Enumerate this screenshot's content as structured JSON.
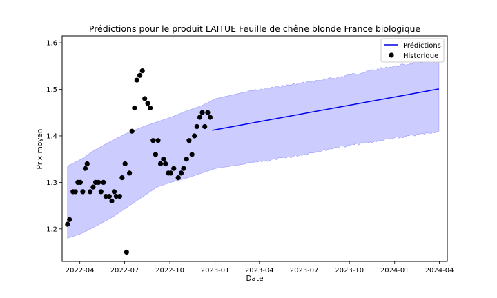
{
  "chart_data": {
    "type": "line",
    "title": "Prédictions pour le produit LAITUE Feuille de chêne blonde France biologique",
    "xlabel": "Date",
    "ylabel": "Prix moyen",
    "xlim": [
      "2022-02-24",
      "2024-04-17"
    ],
    "ylim": [
      1.13,
      1.615
    ],
    "x_ticks": [
      "2022-04",
      "2022-07",
      "2022-10",
      "2023-01",
      "2023-04",
      "2023-07",
      "2023-10",
      "2024-01",
      "2024-04"
    ],
    "y_ticks": [
      1.2,
      1.3,
      1.4,
      1.5,
      1.6
    ],
    "grid": false,
    "legend": {
      "position": "top-right",
      "entries": [
        "Prédictions",
        "Historique"
      ]
    },
    "colors": {
      "prediction_line": "#0000ee",
      "interval_fill": "#ccccff",
      "interval_edge": "#9999ff",
      "history_points": "#000000"
    },
    "series": [
      {
        "name": "Historique",
        "kind": "scatter",
        "points": [
          [
            "2022-03-07",
            1.21
          ],
          [
            "2022-03-11",
            1.22
          ],
          [
            "2022-03-18",
            1.28
          ],
          [
            "2022-03-23",
            1.28
          ],
          [
            "2022-03-28",
            1.3
          ],
          [
            "2022-04-02",
            1.3
          ],
          [
            "2022-04-07",
            1.28
          ],
          [
            "2022-04-12",
            1.33
          ],
          [
            "2022-04-16",
            1.34
          ],
          [
            "2022-04-22",
            1.28
          ],
          [
            "2022-04-28",
            1.29
          ],
          [
            "2022-05-03",
            1.3
          ],
          [
            "2022-05-09",
            1.3
          ],
          [
            "2022-05-14",
            1.28
          ],
          [
            "2022-05-19",
            1.3
          ],
          [
            "2022-05-24",
            1.27
          ],
          [
            "2022-05-31",
            1.27
          ],
          [
            "2022-06-05",
            1.26
          ],
          [
            "2022-06-10",
            1.28
          ],
          [
            "2022-06-14",
            1.27
          ],
          [
            "2022-06-21",
            1.27
          ],
          [
            "2022-06-26",
            1.31
          ],
          [
            "2022-07-02",
            1.34
          ],
          [
            "2022-07-05",
            1.15
          ],
          [
            "2022-07-11",
            1.32
          ],
          [
            "2022-07-16",
            1.41
          ],
          [
            "2022-07-21",
            1.46
          ],
          [
            "2022-07-26",
            1.52
          ],
          [
            "2022-08-01",
            1.53
          ],
          [
            "2022-08-06",
            1.54
          ],
          [
            "2022-08-11",
            1.48
          ],
          [
            "2022-08-17",
            1.47
          ],
          [
            "2022-08-22",
            1.46
          ],
          [
            "2022-08-28",
            1.39
          ],
          [
            "2022-09-02",
            1.36
          ],
          [
            "2022-09-07",
            1.39
          ],
          [
            "2022-09-12",
            1.34
          ],
          [
            "2022-09-18",
            1.35
          ],
          [
            "2022-09-22",
            1.34
          ],
          [
            "2022-09-28",
            1.32
          ],
          [
            "2022-10-03",
            1.32
          ],
          [
            "2022-10-09",
            1.33
          ],
          [
            "2022-10-18",
            1.31
          ],
          [
            "2022-10-24",
            1.32
          ],
          [
            "2022-10-29",
            1.33
          ],
          [
            "2022-11-04",
            1.35
          ],
          [
            "2022-11-09",
            1.39
          ],
          [
            "2022-11-15",
            1.36
          ],
          [
            "2022-11-20",
            1.4
          ],
          [
            "2022-11-25",
            1.42
          ],
          [
            "2022-12-01",
            1.44
          ],
          [
            "2022-12-06",
            1.45
          ],
          [
            "2022-12-11",
            1.42
          ],
          [
            "2022-12-17",
            1.45
          ],
          [
            "2022-12-22",
            1.44
          ]
        ]
      },
      {
        "name": "Prédictions",
        "kind": "line",
        "points": [
          [
            "2022-12-26",
            1.412
          ],
          [
            "2024-03-31",
            1.501
          ]
        ]
      },
      {
        "kind": "interval",
        "upper": [
          [
            "2022-03-07",
            1.335
          ],
          [
            "2022-04-04",
            1.35
          ],
          [
            "2022-05-02",
            1.37
          ],
          [
            "2022-06-06",
            1.39
          ],
          [
            "2022-07-04",
            1.405
          ],
          [
            "2022-08-08",
            1.42
          ],
          [
            "2022-09-05",
            1.43
          ],
          [
            "2022-10-03",
            1.44
          ],
          [
            "2022-11-07",
            1.455
          ],
          [
            "2022-12-05",
            1.465
          ],
          [
            "2023-01-02",
            1.48
          ],
          [
            "2023-03-06",
            1.495
          ],
          [
            "2023-06-05",
            1.51
          ],
          [
            "2023-09-04",
            1.525
          ],
          [
            "2023-12-04",
            1.545
          ],
          [
            "2024-03-31",
            1.565
          ]
        ],
        "lower": [
          [
            "2022-03-07",
            1.18
          ],
          [
            "2022-04-04",
            1.19
          ],
          [
            "2022-05-02",
            1.205
          ],
          [
            "2022-06-06",
            1.225
          ],
          [
            "2022-07-04",
            1.245
          ],
          [
            "2022-08-08",
            1.27
          ],
          [
            "2022-09-05",
            1.29
          ],
          [
            "2022-10-03",
            1.3
          ],
          [
            "2022-11-07",
            1.31
          ],
          [
            "2022-12-05",
            1.32
          ],
          [
            "2023-01-02",
            1.33
          ],
          [
            "2023-03-06",
            1.34
          ],
          [
            "2023-06-05",
            1.355
          ],
          [
            "2023-09-04",
            1.375
          ],
          [
            "2023-12-04",
            1.39
          ],
          [
            "2024-03-31",
            1.41
          ]
        ]
      }
    ]
  }
}
